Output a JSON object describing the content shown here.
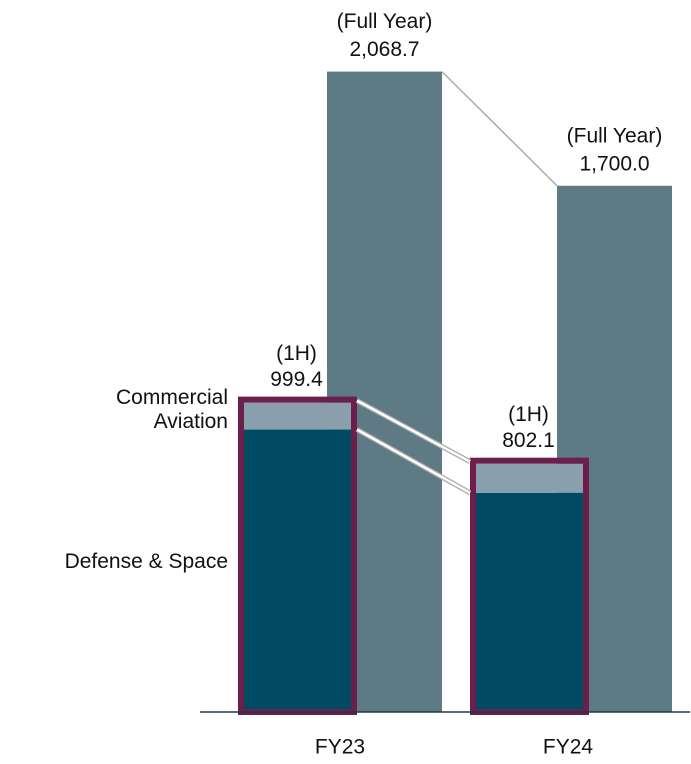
{
  "chart_data": {
    "type": "bar",
    "categories": [
      "FY23",
      "FY24"
    ],
    "ylim": [
      0,
      2300
    ],
    "series": [
      {
        "name": "Defense & Space",
        "color": "#004a63",
        "values": [
          912.4,
          708.1
        ]
      },
      {
        "name": "Commercial Aviation",
        "color": "#8a9fae",
        "values": [
          87.0,
          94.0
        ]
      }
    ],
    "totals": {
      "label": "(1H)",
      "values": [
        999.4,
        802.1
      ],
      "color": "#6b1f4a"
    },
    "full_year": {
      "label": "(Full Year)",
      "values": [
        2068.7,
        1700.0
      ],
      "value_labels": [
        "2,068.7",
        "1,700.0"
      ],
      "color": "#5d7a85"
    }
  }
}
